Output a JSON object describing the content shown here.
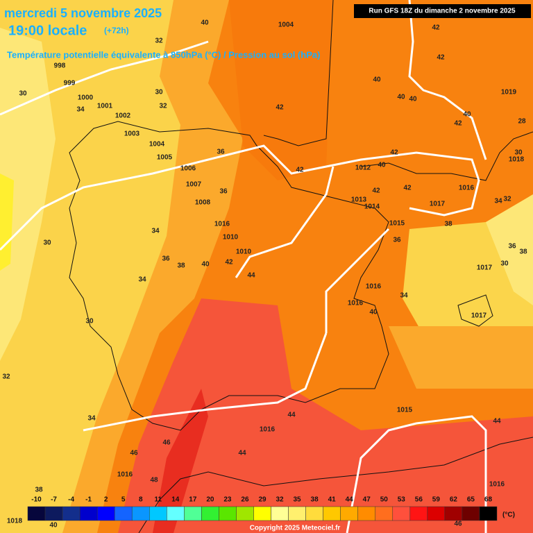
{
  "header": {
    "date": "mercredi 5 novembre 2025",
    "time": "19:00 locale",
    "lead": "(+72h)",
    "subtitle": "Température potentielle équivalente à 850hPa (°C) / Pression au sol (hPa)",
    "run": "Run GFS 18Z du dimanche 2 novembre 2025"
  },
  "contour_labels": [
    40,
    32,
    1004,
    42,
    42,
    998,
    999,
    30,
    1000,
    1001,
    34,
    1002,
    30,
    32,
    42,
    40,
    40,
    40,
    1019,
    40,
    42,
    1003,
    1004,
    1005,
    36,
    42,
    1006,
    42,
    1012,
    40,
    42,
    42,
    1016,
    1007,
    36,
    1008,
    1013,
    1014,
    1017,
    34,
    32,
    30,
    1018,
    28,
    1016,
    1015,
    38,
    34,
    1010,
    36,
    30,
    1010,
    42,
    36,
    38,
    40,
    44,
    1017,
    30,
    36,
    38,
    34,
    1016,
    1016,
    34,
    40,
    1017,
    30,
    32,
    34,
    44,
    1015,
    1016,
    44,
    46,
    46,
    44,
    1016,
    48,
    38,
    1016,
    46,
    40,
    1018
  ],
  "legend": {
    "labels": [
      -10,
      -7,
      -4,
      -1,
      2,
      5,
      8,
      11,
      14,
      17,
      20,
      23,
      26,
      29,
      32,
      35,
      38,
      41,
      44,
      47,
      50,
      53,
      56,
      59,
      62,
      65,
      68
    ],
    "colors": [
      "#06063c",
      "#0d1a5e",
      "#132e8c",
      "#0000cd",
      "#0000ff",
      "#1464ff",
      "#0a96ff",
      "#00c8ff",
      "#64ffff",
      "#50ff96",
      "#32f032",
      "#5ae600",
      "#a0e600",
      "#ffff00",
      "#ffff96",
      "#fff06e",
      "#ffdc3c",
      "#ffc800",
      "#ffaa00",
      "#ff8c00",
      "#ff6e1e",
      "#ff503c",
      "#ff1414",
      "#dc0000",
      "#a00000",
      "#6e0000",
      "#000000"
    ],
    "unit": "(°C)"
  },
  "copyright": "Copyright 2025 Meteociel.fr"
}
